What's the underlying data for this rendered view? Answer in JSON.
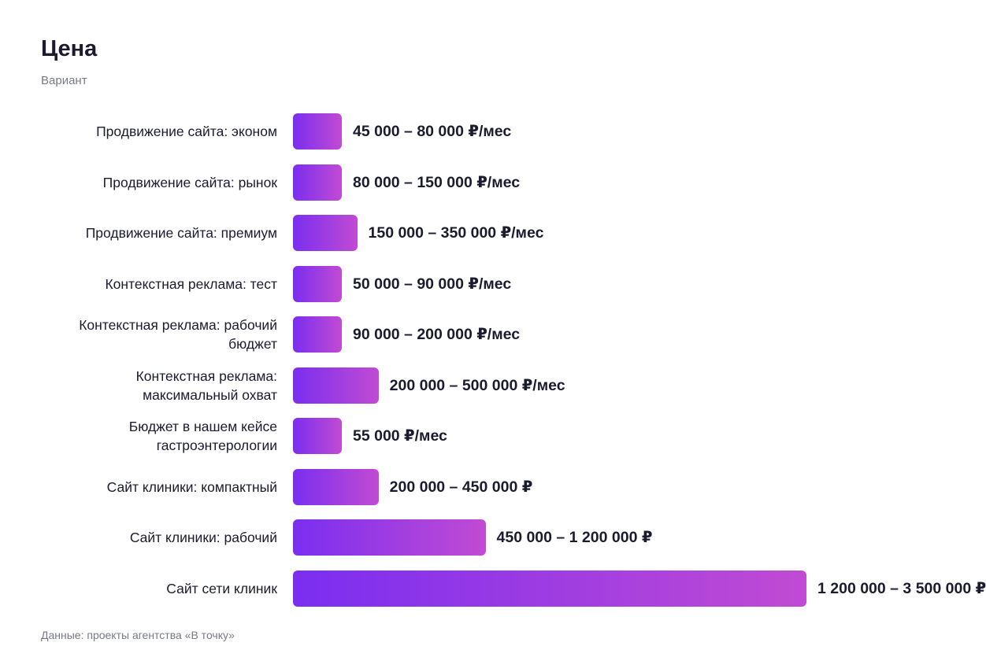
{
  "chart_data": {
    "type": "bar",
    "orientation": "horizontal",
    "title": "Цена",
    "subtitle": "Вариант",
    "categories": [
      "Продвижение сайта: эконом",
      "Продвижение сайта: рынок",
      "Продвижение сайта: премиум",
      "Контекстная реклама: тест",
      "Контекстная реклама: рабочий бюджет",
      "Контекстная реклама: максимальный охват",
      "Бюджет в нашем кейсе гастроэнтерологии",
      "Сайт клиники: компактный",
      "Сайт клиники: рабочий",
      "Сайт сети клиник"
    ],
    "values": [
      45000,
      80000,
      150000,
      50000,
      90000,
      200000,
      55000,
      200000,
      450000,
      1200000
    ],
    "value_labels": [
      "45 000 – 80 000 ₽/мес",
      "80 000 – 150 000 ₽/мес",
      "150 000 – 350 000 ₽/мес",
      "50 000 – 90 000 ₽/мес",
      "90 000 – 200 000 ₽/мес",
      "200 000 – 500 000 ₽/мес",
      "55 000 ₽/мес",
      "200 000 – 450 000 ₽",
      "450 000 – 1 200 000 ₽",
      "1 200 000 – 3 500 000 ₽"
    ],
    "color": [
      "#7a2ef0",
      "#c14bd3"
    ],
    "source": "Данные: проекты агентства «В точку»"
  }
}
